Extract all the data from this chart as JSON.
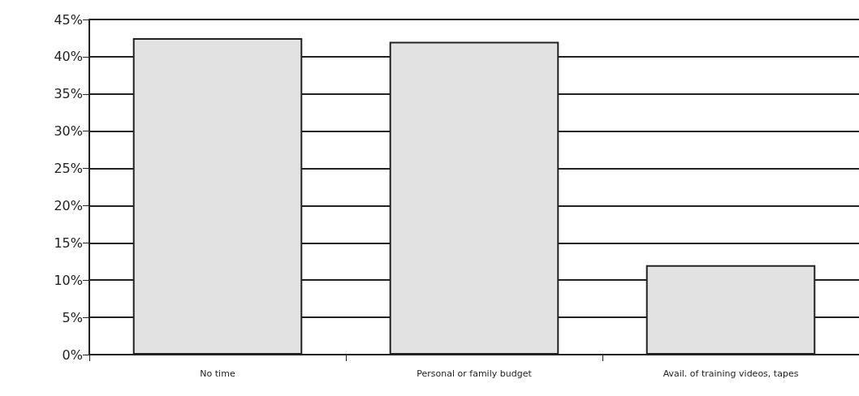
{
  "chart_data": {
    "type": "bar",
    "categories": [
      "No time",
      "Personal or family budget",
      "Avail. of training videos, tapes"
    ],
    "values": [
      42.5,
      42,
      12
    ],
    "color": "#e2e2e2",
    "ylim": [
      0,
      45
    ],
    "yticks": [
      {
        "value": 0,
        "label": "0%"
      },
      {
        "value": 5,
        "label": "5%"
      },
      {
        "value": 10,
        "label": "10%"
      },
      {
        "value": 15,
        "label": "15%"
      },
      {
        "value": 20,
        "label": "20%"
      },
      {
        "value": 25,
        "label": "25%"
      },
      {
        "value": 30,
        "label": "30%"
      },
      {
        "value": 35,
        "label": "35%"
      },
      {
        "value": 40,
        "label": "40%"
      },
      {
        "value": 45,
        "label": "45%"
      }
    ],
    "grid": "y"
  }
}
